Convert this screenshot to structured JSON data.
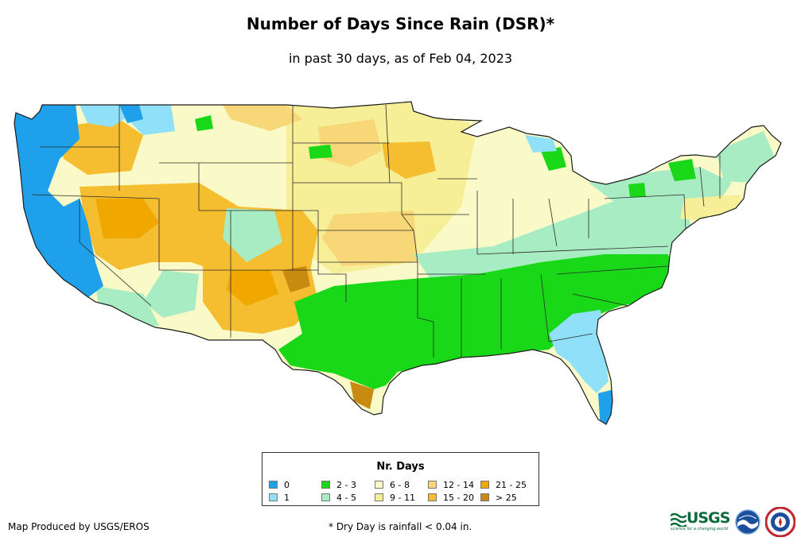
{
  "title": "Number of Days Since Rain (DSR)*",
  "subtitle": "in past 30 days, as of Feb 04, 2023",
  "legend": {
    "title": "Nr. Days",
    "items": [
      {
        "label": "0",
        "color": "#1fa0ea"
      },
      {
        "label": "1",
        "color": "#8fe0f8"
      },
      {
        "label": "2 - 3",
        "color": "#18d818"
      },
      {
        "label": "4 - 5",
        "color": "#a8ecc4"
      },
      {
        "label": "6 - 8",
        "color": "#fafac8"
      },
      {
        "label": "9 - 11",
        "color": "#f7ef98"
      },
      {
        "label": "12 - 14",
        "color": "#f7d778"
      },
      {
        "label": "15 - 20",
        "color": "#f5bd30"
      },
      {
        "label": "21 - 25",
        "color": "#f0a800"
      },
      {
        "label": "> 25",
        "color": "#c88a10"
      }
    ]
  },
  "credit": "Map Produced by USGS/EROS",
  "footnote": "* Dry Day is rainfall < 0.04 in.",
  "logos": {
    "usgs": "USGS",
    "usgs_tagline": "science for a changing world",
    "noaa": "noaa",
    "nws": "NATIONAL WEATHER SERVICE"
  },
  "icons": [
    "usgs-logo-icon",
    "noaa-logo-icon",
    "nws-logo-icon"
  ]
}
